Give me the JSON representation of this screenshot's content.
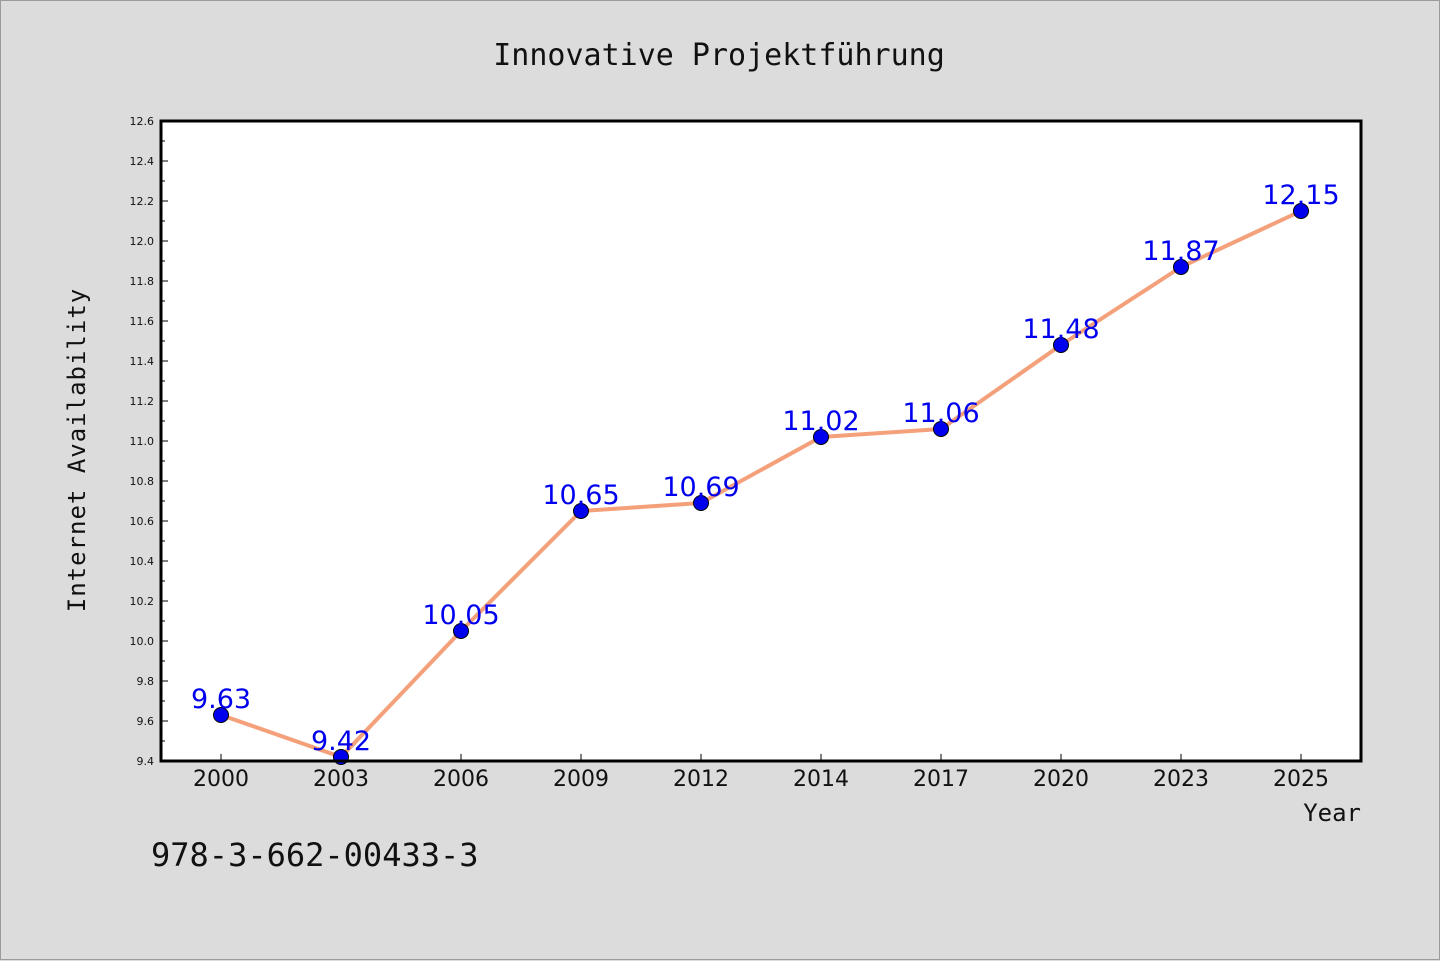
{
  "chart_data": {
    "type": "line",
    "title": "Innovative Projektführung",
    "xlabel": "Year",
    "ylabel": "Internet Availability",
    "categories": [
      "2000",
      "2003",
      "2006",
      "2009",
      "2012",
      "2014",
      "2017",
      "2020",
      "2023",
      "2025"
    ],
    "series": [
      {
        "values": [
          9.63,
          9.42,
          10.05,
          10.65,
          10.69,
          11.02,
          11.06,
          11.48,
          11.87,
          12.15
        ],
        "data_labels": [
          "9.63",
          "9.42",
          "10.05",
          "10.65",
          "10.69",
          "11.02",
          "11.06",
          "11.48",
          "11.87",
          "12.15"
        ],
        "line_color": "#f4a07a",
        "marker_color": "#0000ee"
      }
    ],
    "ylim": [
      9.4,
      12.6
    ],
    "yticks": [
      "9.4",
      "9.6",
      "9.8",
      "10.0",
      "10.2",
      "10.4",
      "10.6",
      "10.8",
      "11.0",
      "11.2",
      "11.4",
      "11.6",
      "11.8",
      "12.0",
      "12.2",
      "12.4",
      "12.6"
    ],
    "grid": false,
    "label_color": "#0000ee"
  },
  "footer": {
    "isbn": "978-3-662-00433-3"
  }
}
